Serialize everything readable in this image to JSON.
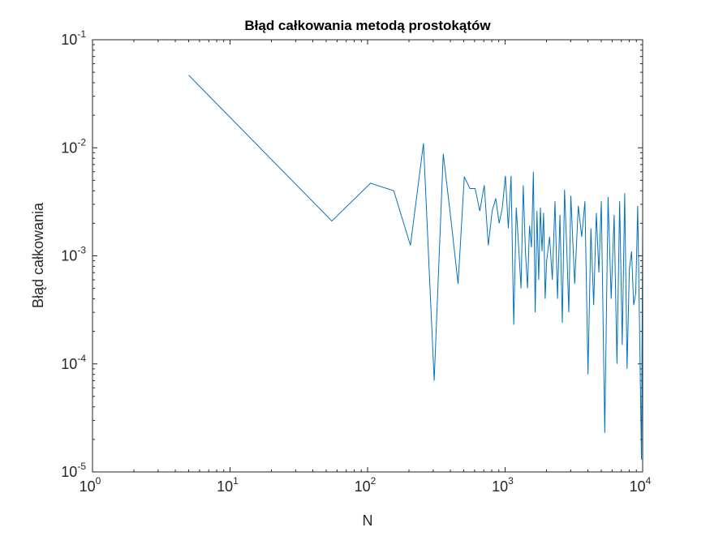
{
  "chart_data": {
    "type": "line",
    "title": "Błąd całkowania metodą prostokątów",
    "xlabel": "N",
    "ylabel": "Błąd całkowania",
    "xscale": "log",
    "yscale": "log",
    "xlim": [
      1,
      10000
    ],
    "ylim": [
      1e-05,
      0.1
    ],
    "grid": false,
    "box": true,
    "xticks": [
      {
        "value": 1,
        "base": "10",
        "exp": "0"
      },
      {
        "value": 10,
        "base": "10",
        "exp": "1"
      },
      {
        "value": 100,
        "base": "10",
        "exp": "2"
      },
      {
        "value": 1000,
        "base": "10",
        "exp": "3"
      },
      {
        "value": 10000,
        "base": "10",
        "exp": "4"
      }
    ],
    "yticks": [
      {
        "value": 1e-05,
        "base": "10",
        "exp": "-5"
      },
      {
        "value": 0.0001,
        "base": "10",
        "exp": "-4"
      },
      {
        "value": 0.001,
        "base": "10",
        "exp": "-3"
      },
      {
        "value": 0.01,
        "base": "10",
        "exp": "-2"
      },
      {
        "value": 0.1,
        "base": "10",
        "exp": "-1"
      }
    ],
    "series": [
      {
        "color": "#0072BD",
        "x": [
          5,
          55,
          105,
          155,
          205,
          255,
          305,
          355,
          405,
          455,
          505,
          555,
          605,
          655,
          705,
          755,
          805,
          855,
          905,
          955,
          1005,
          1055,
          1105,
          1155,
          1205,
          1255,
          1305,
          1355,
          1405,
          1455,
          1505,
          1555,
          1605,
          1655,
          1705,
          1755,
          1805,
          1855,
          1905,
          1955,
          2005,
          2105,
          2205,
          2305,
          2405,
          2505,
          2605,
          2705,
          2805,
          2905,
          3005,
          3205,
          3405,
          3605,
          3805,
          4005,
          4205,
          4405,
          4605,
          4805,
          5005,
          5305,
          5605,
          5905,
          6205,
          6505,
          6805,
          7105,
          7405,
          7705,
          8005,
          8305,
          8605,
          8905,
          9205,
          9505,
          9805,
          10000
        ],
        "y": [
          0.047,
          0.0021,
          0.0047,
          0.004,
          0.00125,
          0.011,
          7e-05,
          0.0088,
          0.0021,
          0.00055,
          0.0054,
          0.0042,
          0.0042,
          0.0026,
          0.0045,
          0.00125,
          0.0026,
          0.0034,
          0.002,
          0.0028,
          0.0055,
          0.0018,
          0.0055,
          0.00023,
          0.0028,
          0.0012,
          0.0005,
          0.0045,
          0.0011,
          0.0005,
          0.0019,
          0.0012,
          0.006,
          0.0003,
          0.0026,
          0.0006,
          0.0028,
          0.0011,
          0.0025,
          0.0004,
          0.0009,
          0.0015,
          0.0006,
          0.0032,
          0.0004,
          0.0024,
          0.00024,
          0.0041,
          0.0012,
          0.0003,
          0.0036,
          0.00055,
          0.0029,
          0.0015,
          0.0032,
          8e-05,
          0.0018,
          0.00035,
          0.0025,
          0.0007,
          0.0032,
          2.3e-05,
          0.0035,
          0.0004,
          0.0024,
          0.0001,
          0.0032,
          0.00015,
          0.0038,
          9e-05,
          0.00075,
          0.0011,
          0.00035,
          0.00045,
          0.0029,
          0.0002,
          1.3e-05,
          0.0019
        ]
      }
    ]
  }
}
